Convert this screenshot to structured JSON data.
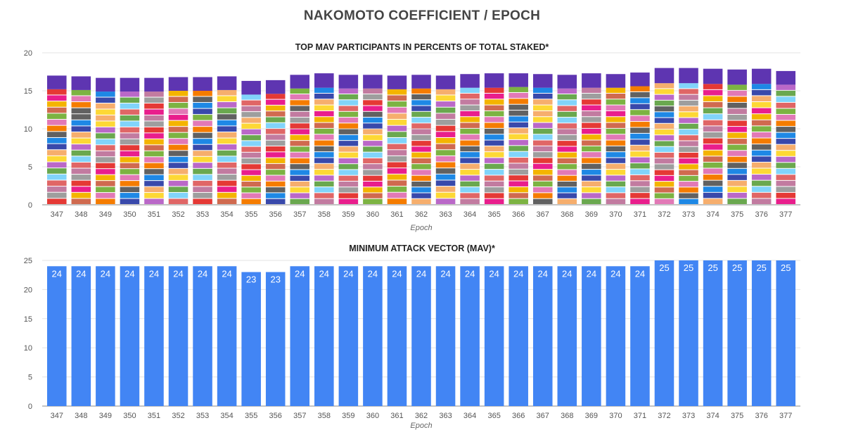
{
  "page": {
    "title": "NAKOMOTO COEFFICIENT / EPOCH"
  },
  "chart_data": [
    {
      "type": "bar",
      "stacked": true,
      "title": "TOP MAV PARTICIPANTS IN PERCENTS OF TOTAL STAKED*",
      "xlabel": "Epoch",
      "ylabel": "",
      "ylim": [
        0,
        20
      ],
      "yticks": [
        0,
        5,
        10,
        15,
        20
      ],
      "grid": true,
      "legend": "none",
      "categories": [
        "347",
        "348",
        "349",
        "350",
        "351",
        "352",
        "353",
        "354",
        "355",
        "356",
        "357",
        "358",
        "359",
        "360",
        "361",
        "362",
        "363",
        "364",
        "365",
        "366",
        "367",
        "368",
        "369",
        "370",
        "371",
        "372",
        "373",
        "374",
        "375",
        "376",
        "377"
      ],
      "totals": [
        17.0,
        16.9,
        16.7,
        16.7,
        16.7,
        16.8,
        16.8,
        16.9,
        16.3,
        16.4,
        17.1,
        17.3,
        17.1,
        17.1,
        17.0,
        17.1,
        17.0,
        17.2,
        17.3,
        17.3,
        17.2,
        17.1,
        17.3,
        17.2,
        17.4,
        18.0,
        18.0,
        17.9,
        17.8,
        17.9,
        17.6
      ],
      "top_segments": [
        1.8,
        1.8,
        1.8,
        1.8,
        1.8,
        1.8,
        1.8,
        1.8,
        1.8,
        1.8,
        1.8,
        1.9,
        1.8,
        1.8,
        1.8,
        1.8,
        1.8,
        1.8,
        1.9,
        1.8,
        1.8,
        1.8,
        1.9,
        1.8,
        1.8,
        2.0,
        2.0,
        2.0,
        2.0,
        2.0,
        1.8
      ],
      "segment_colors": [
        "#5e35b1",
        "#e53935",
        "#e91e8c",
        "#f4b400",
        "#d06a4f",
        "#7cb342",
        "#e279b6",
        "#f57c00",
        "#616161",
        "#1e88e5",
        "#3949ab",
        "#f6ae6d",
        "#fdd835",
        "#ba68c8",
        "#6aa84f",
        "#81d4fa",
        "#e06666",
        "#c27ba0",
        "#9e9e9e"
      ]
    },
    {
      "type": "bar",
      "title": "MINIMUM ATTACK VECTOR (MAV)*",
      "xlabel": "Epoch",
      "ylabel": "",
      "ylim": [
        0,
        25
      ],
      "yticks": [
        0,
        5,
        10,
        15,
        20,
        25
      ],
      "grid": true,
      "legend": "none",
      "color": "#4285f4",
      "categories": [
        "347",
        "348",
        "349",
        "350",
        "351",
        "352",
        "353",
        "354",
        "355",
        "356",
        "357",
        "358",
        "359",
        "360",
        "361",
        "362",
        "363",
        "364",
        "365",
        "366",
        "367",
        "368",
        "369",
        "370",
        "371",
        "372",
        "373",
        "374",
        "375",
        "376",
        "377"
      ],
      "values": [
        24,
        24,
        24,
        24,
        24,
        24,
        24,
        24,
        23,
        23,
        24,
        24,
        24,
        24,
        24,
        24,
        24,
        24,
        24,
        24,
        24,
        24,
        24,
        24,
        24,
        25,
        25,
        25,
        25,
        25,
        25
      ]
    }
  ]
}
